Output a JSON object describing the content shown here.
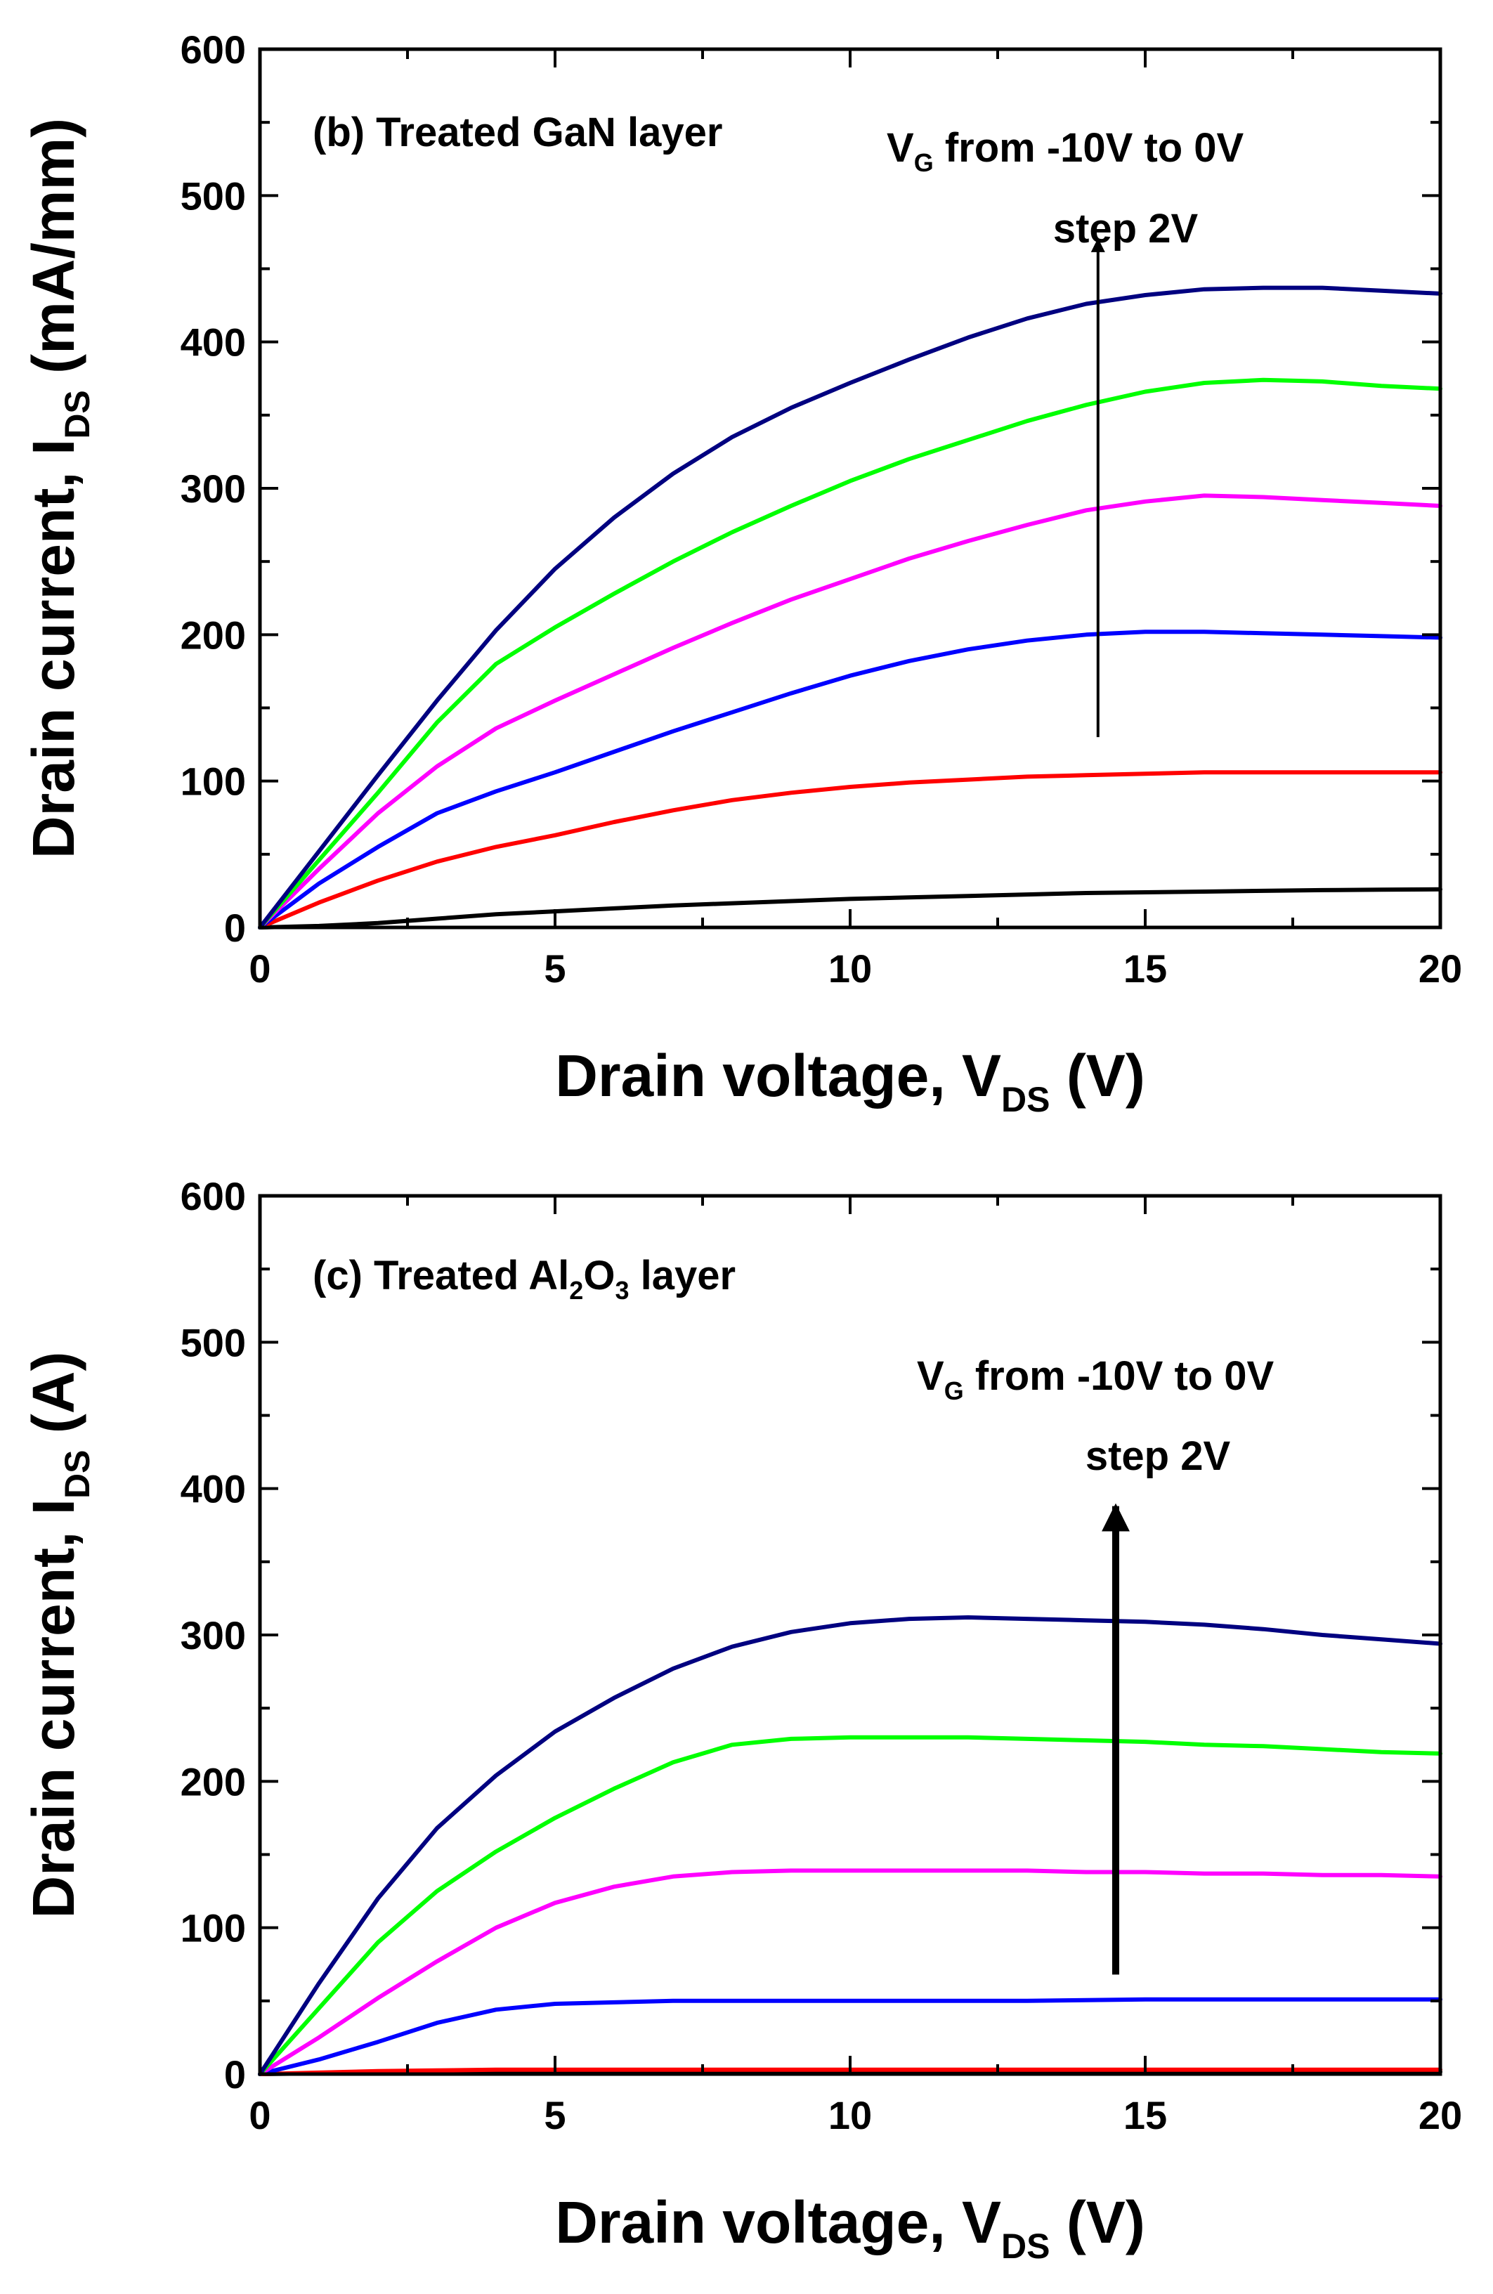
{
  "chart_data": [
    {
      "type": "line",
      "panel_label": "(b) Treated GaN layer",
      "xlabel": {
        "main": "Drain voltage, V",
        "sub": "DS",
        "suffix": " (V)"
      },
      "ylabel": {
        "main": "Drain current, I",
        "sub": "DS",
        "suffix": " (mA/mm)"
      },
      "xlim": [
        0,
        20
      ],
      "ylim": [
        0,
        600
      ],
      "xticks": [
        0,
        5,
        10,
        15,
        20
      ],
      "yticks": [
        0,
        100,
        200,
        300,
        400,
        500,
        600
      ],
      "annotation": {
        "line1_main": "V",
        "line1_sub": "G",
        "line1_rest": " from -10V to 0V",
        "line2": "step 2V"
      },
      "arrow": {
        "x": 14.2,
        "y_from": 130,
        "y_to": 470
      },
      "x": [
        0,
        1,
        2,
        3,
        4,
        5,
        6,
        7,
        8,
        9,
        10,
        11,
        12,
        13,
        14,
        15,
        16,
        17,
        18,
        19,
        20
      ],
      "series": [
        {
          "name": "VG = -10V",
          "color": "#000000",
          "values": [
            0,
            1,
            3,
            6,
            9,
            11,
            13,
            15,
            16.5,
            18,
            19.5,
            20.5,
            21.5,
            22.5,
            23.5,
            24,
            24.5,
            25,
            25.5,
            25.8,
            26
          ]
        },
        {
          "name": "VG = -8V",
          "color": "#ff0000",
          "values": [
            0,
            17,
            32,
            45,
            55,
            63,
            72,
            80,
            87,
            92,
            96,
            99,
            101,
            103,
            104,
            105,
            106,
            106,
            106,
            106,
            106
          ]
        },
        {
          "name": "VG = -6V",
          "color": "#0000ff",
          "values": [
            0,
            30,
            55,
            78,
            93,
            106,
            120,
            134,
            147,
            160,
            172,
            182,
            190,
            196,
            200,
            202,
            202,
            201,
            200,
            199,
            198
          ]
        },
        {
          "name": "VG = -4V",
          "color": "#ff00ff",
          "values": [
            0,
            40,
            78,
            110,
            136,
            155,
            173,
            191,
            208,
            224,
            238,
            252,
            264,
            275,
            285,
            291,
            295,
            294,
            292,
            290,
            288
          ]
        },
        {
          "name": "VG = -2V",
          "color": "#00ff00",
          "values": [
            0,
            46,
            92,
            140,
            180,
            205,
            228,
            250,
            270,
            288,
            305,
            320,
            333,
            346,
            357,
            366,
            372,
            374,
            373,
            370,
            368
          ]
        },
        {
          "name": "VG = 0V",
          "color": "#000080",
          "values": [
            0,
            52,
            104,
            155,
            203,
            245,
            280,
            310,
            335,
            355,
            372,
            388,
            403,
            416,
            426,
            432,
            436,
            437,
            437,
            435,
            433
          ]
        }
      ]
    },
    {
      "type": "line",
      "panel_label": {
        "pre": "(c) Treated Al",
        "sub1": "2",
        "mid": "O",
        "sub2": "3",
        "post": " layer"
      },
      "xlabel": {
        "main": "Drain voltage, V",
        "sub": "DS",
        "suffix": " (V)"
      },
      "ylabel": {
        "main": "Drain current, I",
        "sub": "DS",
        "suffix": " (A)"
      },
      "xlim": [
        0,
        20
      ],
      "ylim": [
        0,
        600
      ],
      "xticks": [
        0,
        5,
        10,
        15,
        20
      ],
      "yticks": [
        0,
        100,
        200,
        300,
        400,
        500,
        600
      ],
      "annotation": {
        "line1_main": "V",
        "line1_sub": "G",
        "line1_rest": " from -10V to 0V",
        "line2": "step 2V"
      },
      "arrow": {
        "x": 14.5,
        "y_from": 68,
        "y_to": 388
      },
      "x": [
        0,
        1,
        2,
        3,
        4,
        5,
        6,
        7,
        8,
        9,
        10,
        11,
        12,
        13,
        14,
        15,
        16,
        17,
        18,
        19,
        20
      ],
      "series": [
        {
          "name": "VG = -10V",
          "color": "#000000",
          "values": [
            0,
            0.5,
            1,
            1,
            1.2,
            1.5,
            1.5,
            1.5,
            1.5,
            1.5,
            1.5,
            1.5,
            1.5,
            1.5,
            1.5,
            1.5,
            1.5,
            1.5,
            1.5,
            1.5,
            1.5
          ]
        },
        {
          "name": "VG = -8V",
          "color": "#ff0000",
          "values": [
            0,
            1,
            2,
            2.5,
            3,
            3,
            3,
            3,
            3,
            3,
            3,
            3,
            3,
            3,
            3,
            3,
            3,
            3,
            3,
            3,
            3
          ]
        },
        {
          "name": "VG = -6V",
          "color": "#0000ff",
          "values": [
            0,
            10,
            22,
            35,
            44,
            48,
            49,
            50,
            50,
            50,
            50,
            50,
            50,
            50,
            50.5,
            51,
            51,
            51,
            51,
            51,
            51
          ]
        },
        {
          "name": "VG = -4V",
          "color": "#ff00ff",
          "values": [
            0,
            25,
            52,
            77,
            100,
            117,
            128,
            135,
            138,
            139,
            139,
            139,
            139,
            139,
            138,
            138,
            137,
            137,
            136,
            136,
            135
          ]
        },
        {
          "name": "VG = -2V",
          "color": "#00ff00",
          "values": [
            0,
            45,
            90,
            125,
            152,
            175,
            195,
            213,
            225,
            229,
            230,
            230,
            230,
            229,
            228,
            227,
            225,
            224,
            222,
            220,
            219
          ]
        },
        {
          "name": "VG = 0V",
          "color": "#000080",
          "values": [
            0,
            62,
            120,
            168,
            204,
            234,
            257,
            277,
            292,
            302,
            308,
            311,
            312,
            311,
            310,
            309,
            307,
            304,
            300,
            297,
            294
          ]
        }
      ]
    }
  ]
}
